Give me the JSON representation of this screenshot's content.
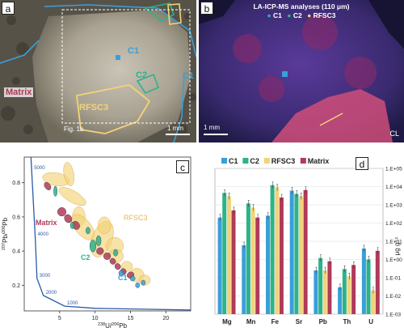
{
  "panel_a": {
    "label": "a",
    "region_labels": [
      "C1",
      "C2",
      "RFSC3",
      "Matrix",
      "C1"
    ],
    "inset_label": "Fig. 1b",
    "scale": "1 mm"
  },
  "panel_b": {
    "label": "b",
    "title": "LA-ICP-MS analyses (110 μm)",
    "legend": [
      "C1",
      "C2",
      "RFSC3"
    ],
    "scale": "1 mm",
    "corner_label": "CL"
  },
  "colors": {
    "C1": "#3a9fd8",
    "C2": "#2bb38a",
    "RFSC3": "#f2d27a",
    "Matrix": "#b03a5a"
  },
  "chart_data": [
    {
      "panel": "c",
      "type": "scatter",
      "xlabel": "238U/206Pb",
      "xlabel_parts": {
        "iso1": "238",
        "el1": "U/",
        "iso2": "206",
        "el2": "Pb"
      },
      "ylabel": "207Pb/206Pb",
      "ylabel_parts": {
        "iso1": "207",
        "el1": "Pb/",
        "iso2": "206",
        "el2": "Pb"
      },
      "xlim": [
        0,
        23.5
      ],
      "ylim": [
        0.05,
        0.95
      ],
      "x_ticks": [
        "5",
        "10",
        "15",
        "20"
      ],
      "y_ticks": [
        "0.2",
        "0.4",
        "0.6",
        "0.8"
      ],
      "concordia_labels": [
        "5000",
        "4000",
        "3000",
        "2000",
        "1000"
      ],
      "concordia_points": [
        {
          "label": "5000",
          "x": 1.05,
          "y": 0.87
        },
        {
          "label": "4000",
          "x": 1.55,
          "y": 0.48
        },
        {
          "label": "3000",
          "x": 1.8,
          "y": 0.24
        },
        {
          "label": "2000",
          "x": 2.7,
          "y": 0.14
        },
        {
          "label": "1000",
          "x": 5.7,
          "y": 0.078
        }
      ],
      "series_labels": [
        "Matrix",
        "RFSC3",
        "C2",
        "C1"
      ],
      "ellipses": [
        {
          "g": "RFSC3",
          "x": 4.5,
          "y": 0.82,
          "rx": 0.9,
          "ry": 0.08,
          "r": -80
        },
        {
          "g": "RFSC3",
          "x": 6.3,
          "y": 0.85,
          "rx": 0.7,
          "ry": 0.07,
          "r": -10
        },
        {
          "g": "RFSC3",
          "x": 6.8,
          "y": 0.72,
          "rx": 0.8,
          "ry": 0.09,
          "r": -60
        },
        {
          "g": "RFSC3",
          "x": 7.7,
          "y": 0.6,
          "rx": 0.9,
          "ry": 0.06,
          "r": 0
        },
        {
          "g": "RFSC3",
          "x": 8.3,
          "y": 0.54,
          "rx": 1.1,
          "ry": 0.09,
          "r": -40
        },
        {
          "g": "RFSC3",
          "x": 11.0,
          "y": 0.47,
          "rx": 1.4,
          "ry": 0.11,
          "r": 20
        },
        {
          "g": "RFSC3",
          "x": 11.3,
          "y": 0.55,
          "rx": 0.9,
          "ry": 0.05,
          "r": 0
        },
        {
          "g": "RFSC3",
          "x": 12.8,
          "y": 0.43,
          "rx": 1.2,
          "ry": 0.05,
          "r": 10
        },
        {
          "g": "RFSC3",
          "x": 12.9,
          "y": 0.37,
          "rx": 1.1,
          "ry": 0.04,
          "r": 0
        },
        {
          "g": "RFSC3",
          "x": 14.5,
          "y": 0.31,
          "rx": 0.8,
          "ry": 0.03,
          "r": 0
        },
        {
          "g": "RFSC3",
          "x": 15.9,
          "y": 0.26,
          "rx": 1.0,
          "ry": 0.04,
          "r": 0
        },
        {
          "g": "RFSC3",
          "x": 17.0,
          "y": 0.23,
          "rx": 0.8,
          "ry": 0.03,
          "r": 0
        },
        {
          "g": "Matrix",
          "x": 3.3,
          "y": 0.78,
          "rx": 0.4,
          "ry": 0.025,
          "r": -35
        },
        {
          "g": "Matrix",
          "x": 5.3,
          "y": 0.63,
          "rx": 0.6,
          "ry": 0.025,
          "r": -30
        },
        {
          "g": "Matrix",
          "x": 6.2,
          "y": 0.59,
          "rx": 0.5,
          "ry": 0.025,
          "r": -30
        },
        {
          "g": "Matrix",
          "x": 7.3,
          "y": 0.55,
          "rx": 0.5,
          "ry": 0.025,
          "r": -30
        },
        {
          "g": "Matrix",
          "x": 10.7,
          "y": 0.4,
          "rx": 0.5,
          "ry": 0.02,
          "r": -30
        },
        {
          "g": "Matrix",
          "x": 11.7,
          "y": 0.37,
          "rx": 0.5,
          "ry": 0.02,
          "r": -30
        },
        {
          "g": "Matrix",
          "x": 12.5,
          "y": 0.34,
          "rx": 0.4,
          "ry": 0.018,
          "r": -30
        },
        {
          "g": "Matrix",
          "x": 13.2,
          "y": 0.31,
          "rx": 0.4,
          "ry": 0.018,
          "r": -30
        },
        {
          "g": "Matrix",
          "x": 14.0,
          "y": 0.28,
          "rx": 0.4,
          "ry": 0.018,
          "r": -30
        },
        {
          "g": "Matrix",
          "x": 15.0,
          "y": 0.26,
          "rx": 0.5,
          "ry": 0.018,
          "r": -30
        },
        {
          "g": "C2",
          "x": 4.4,
          "y": 0.75,
          "rx": 0.25,
          "ry": 0.03,
          "r": 0
        },
        {
          "g": "C2",
          "x": 6.8,
          "y": 0.55,
          "rx": 0.3,
          "ry": 0.02,
          "r": 0
        },
        {
          "g": "C2",
          "x": 9.7,
          "y": 0.43,
          "rx": 0.45,
          "ry": 0.035,
          "r": 0
        },
        {
          "g": "C2",
          "x": 10.5,
          "y": 0.46,
          "rx": 0.35,
          "ry": 0.03,
          "r": 0
        },
        {
          "g": "C2",
          "x": 9.0,
          "y": 0.52,
          "rx": 0.3,
          "ry": 0.02,
          "r": 0
        },
        {
          "g": "C2",
          "x": 12.9,
          "y": 0.39,
          "rx": 0.3,
          "ry": 0.02,
          "r": 0
        },
        {
          "g": "C1",
          "x": 13.7,
          "y": 0.27,
          "rx": 0.35,
          "ry": 0.018,
          "r": 0
        },
        {
          "g": "C1",
          "x": 15.3,
          "y": 0.24,
          "rx": 0.35,
          "ry": 0.015,
          "r": 0
        },
        {
          "g": "C1",
          "x": 16.0,
          "y": 0.2,
          "rx": 0.3,
          "ry": 0.015,
          "r": 0
        },
        {
          "g": "C1",
          "x": 16.8,
          "y": 0.215,
          "rx": 0.3,
          "ry": 0.015,
          "r": 0
        }
      ]
    },
    {
      "panel": "d",
      "type": "bar",
      "ylabel": "μg g⁻¹",
      "yscale": "log",
      "ylim": [
        0.001,
        100000
      ],
      "y_ticks": [
        "1.E-03",
        "1.E-02",
        "1.E-01",
        "1.E+00",
        "1.E+01",
        "1.E+02",
        "1.E+03",
        "1.E+04",
        "1.E+05"
      ],
      "categories": [
        "Mg",
        "Mn",
        "Fe",
        "Sr",
        "Pb",
        "Th",
        "U"
      ],
      "series": [
        {
          "name": "C1",
          "values": [
            200,
            6,
            250,
            6000,
            0.25,
            0.03,
            4
          ]
        },
        {
          "name": "C2",
          "values": [
            4500,
            1200,
            12000,
            4000,
            1.2,
            0.3,
            1
          ]
        },
        {
          "name": "RFSC3",
          "values": [
            3000,
            700,
            9000,
            3000,
            0.25,
            0.12,
            0.02
          ]
        },
        {
          "name": "Matrix",
          "values": [
            500,
            200,
            2500,
            6500,
            0.8,
            0.5,
            3
          ]
        }
      ]
    }
  ]
}
